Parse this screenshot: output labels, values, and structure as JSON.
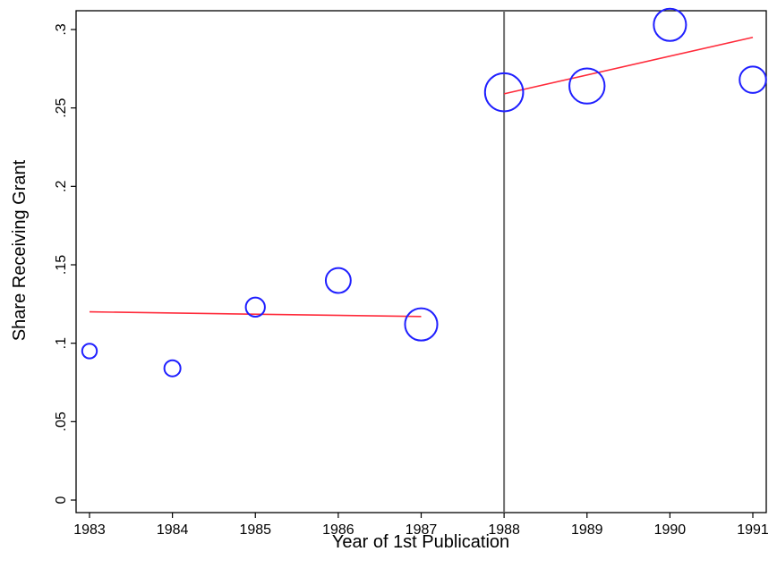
{
  "chart_data": {
    "type": "scatter",
    "title": "",
    "xlabel": "Year of 1st Publication",
    "ylabel": "Share Receiving Grant",
    "xlim": [
      1983,
      1991
    ],
    "ylim": [
      0,
      0.3
    ],
    "grid": false,
    "legend": "none",
    "x_ticks": [
      1983,
      1984,
      1985,
      1986,
      1987,
      1988,
      1989,
      1990,
      1991
    ],
    "x_tick_labels": [
      "1983",
      "1984",
      "1985",
      "1986",
      "1987",
      "1988",
      "1989",
      "1990",
      "1991"
    ],
    "y_ticks": [
      0,
      0.05,
      0.1,
      0.15,
      0.2,
      0.25,
      0.3
    ],
    "y_tick_labels": [
      "0",
      ".05",
      ".1",
      ".15",
      ".2",
      ".25",
      ".3"
    ],
    "series": [
      {
        "marker": "hollow-circle",
        "color": "#1f1fff",
        "points": [
          {
            "x": 1983,
            "y": 0.095,
            "weight": 1.0
          },
          {
            "x": 1984,
            "y": 0.084,
            "weight": 1.1
          },
          {
            "x": 1985,
            "y": 0.123,
            "weight": 1.3
          },
          {
            "x": 1986,
            "y": 0.14,
            "weight": 1.7
          },
          {
            "x": 1987,
            "y": 0.112,
            "weight": 2.2
          },
          {
            "x": 1988,
            "y": 0.26,
            "weight": 2.6
          },
          {
            "x": 1989,
            "y": 0.264,
            "weight": 2.4
          },
          {
            "x": 1990,
            "y": 0.303,
            "weight": 2.2
          },
          {
            "x": 1991,
            "y": 0.268,
            "weight": 1.8
          }
        ]
      }
    ],
    "fit_lines": [
      {
        "color": "#ff2a3a",
        "x": [
          1983,
          1987
        ],
        "y": [
          0.12,
          0.117
        ]
      },
      {
        "color": "#ff2a3a",
        "x": [
          1988,
          1991
        ],
        "y": [
          0.259,
          0.295
        ]
      }
    ],
    "reference_line": {
      "axis": "x",
      "value": 1988,
      "color": "#6e6e6e"
    }
  }
}
